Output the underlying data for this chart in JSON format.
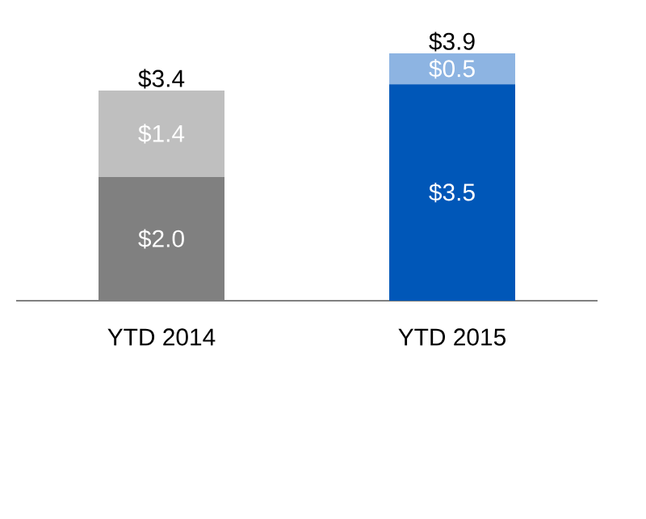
{
  "chart_data": {
    "type": "bar",
    "stacked": true,
    "categories": [
      "YTD 2014",
      "YTD 2015"
    ],
    "series": [
      {
        "colors": [
          "#808080",
          "#0057b8"
        ],
        "values": [
          2.0,
          3.5
        ],
        "value_labels": [
          "$2.0",
          "$3.5"
        ]
      },
      {
        "colors": [
          "#bfbfbf",
          "#8db4e2"
        ],
        "values": [
          1.4,
          0.5
        ],
        "value_labels": [
          "$1.4",
          "$0.5"
        ]
      }
    ],
    "totals": [
      "$3.4",
      "$3.9"
    ]
  }
}
